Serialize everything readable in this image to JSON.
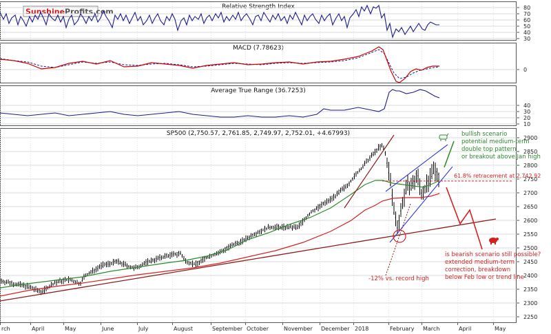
{
  "logo": {
    "part1": "Sunshine",
    "part2": "Profits",
    "part3": ".com"
  },
  "rsi": {
    "title": "Relative Strength Index",
    "ticks": [
      80,
      70,
      60,
      50,
      40,
      30
    ]
  },
  "macd": {
    "title": "MACD (7.78623)",
    "ticks": [
      0
    ]
  },
  "atr": {
    "title": "Average True Range (36.7253)",
    "ticks": [
      40,
      30,
      20,
      10
    ]
  },
  "price": {
    "title": "SP500 (2,750.57, 2,761.85, 2,749.97, 2,752.01, +4.67993)",
    "ticks": [
      2900,
      2850,
      2800,
      2750,
      2700,
      2650,
      2600,
      2550,
      2500,
      2450,
      2400,
      2350,
      2300,
      2250
    ],
    "ylim": [
      2220,
      2920
    ]
  },
  "months": [
    "rch",
    "April",
    "May",
    "June",
    "July",
    "August",
    "September",
    "October",
    "November",
    "December",
    "2018",
    "February",
    "March",
    "April",
    "May"
  ],
  "annotations": {
    "bullish": [
      "bullish scenario",
      "potential medium-term",
      "double top pattern",
      "or breakout above Jan high"
    ],
    "retracement": "61.8% retracement at 2,742.92",
    "bearish": [
      "is bearish scenario still possible?",
      "extended medium-term",
      "correction, breakdown",
      "below Feb low or trend line"
    ],
    "decline": "-12% vs. record high"
  },
  "colors": {
    "rsi_line": "#1a1a8c",
    "macd_line": "#cc0000",
    "signal_line": "#1a1a8c",
    "atr_line": "#1a1a8c",
    "candles": "#000000",
    "ma50": "#2a8a2a",
    "ma200": "#d62020",
    "trendline": "#8b1a1a",
    "channel": "#2e3bd6",
    "bullish": "#2a8a2a",
    "bearish": "#d62020"
  },
  "chart_data": {
    "type": "line",
    "title": "SP500 (2,750.57, 2,761.85, 2,749.97, 2,752.01, +4.67993)",
    "series": [
      {
        "name": "SP500",
        "x": [
          "Mar",
          "Apr",
          "May",
          "Jun",
          "Jul",
          "Aug",
          "Sep",
          "Oct",
          "Nov",
          "Dec",
          "2018",
          "Feb",
          "Mar"
        ],
        "values": [
          2380,
          2360,
          2390,
          2430,
          2440,
          2470,
          2480,
          2520,
          2580,
          2640,
          2700,
          2820,
          2750
        ]
      }
    ],
    "ylim": [
      2220,
      2920
    ],
    "retracement_level": 2742.92
  }
}
